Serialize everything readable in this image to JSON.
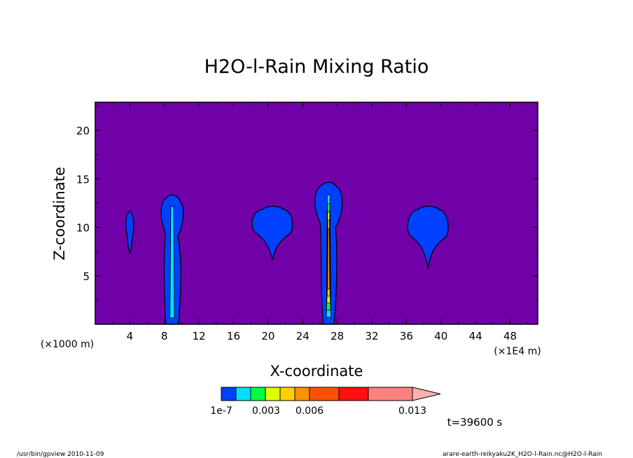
{
  "chart_data": {
    "type": "contour",
    "title": "H2O-l-Rain Mixing Ratio",
    "xlabel": "X-coordinate",
    "ylabel": "Z-coordinate",
    "x_unit_left": "(×1000 m)",
    "x_unit_right": "(×1E4 m)",
    "xlim": [
      0,
      51.2
    ],
    "ylim": [
      0,
      22.9
    ],
    "xticks": [
      4,
      8,
      12,
      16,
      20,
      24,
      28,
      32,
      36,
      40,
      44,
      48
    ],
    "yticks": [
      5,
      10,
      15,
      20
    ],
    "xtick_labels": [
      "4",
      "8",
      "12",
      "16",
      "20",
      "24",
      "28",
      "32",
      "36",
      "40",
      "44",
      "48"
    ],
    "ytick_labels": [
      "5",
      "10",
      "15",
      "20"
    ],
    "background_color": "#7000a8",
    "contour_levels": [
      "1e-7",
      "0.003",
      "0.006",
      "0.013"
    ],
    "level_colors": [
      "#0040ff",
      "#00e0ff",
      "#00ff40",
      "#e0ff00",
      "#ffd000",
      "#ff9000",
      "#ff5000",
      "#ff1010",
      "#ff8080",
      "#ffb0b0"
    ],
    "rain_cells": [
      {
        "x_center": 4.0,
        "z_bottom": 7.3,
        "z_top": 11.5,
        "max_level": 0
      },
      {
        "x_center": 8.9,
        "z_bottom": 0,
        "z_top": 13.2,
        "max_level": 1
      },
      {
        "x_center": 20.5,
        "z_bottom": 6.6,
        "z_top": 12.0,
        "max_level": 0
      },
      {
        "x_center": 27.0,
        "z_bottom": 0,
        "z_top": 14.5,
        "max_level": 5
      },
      {
        "x_center": 38.5,
        "z_bottom": 5.7,
        "z_top": 12.0,
        "max_level": 0
      }
    ]
  },
  "annotations": {
    "time": "t=39600 s",
    "footer_left": "/usr/bin/gpview  2010-11-09",
    "footer_right": "arare-earth-reikyaku2K_H2O-l-Rain.nc@H2O-l-Rain"
  }
}
